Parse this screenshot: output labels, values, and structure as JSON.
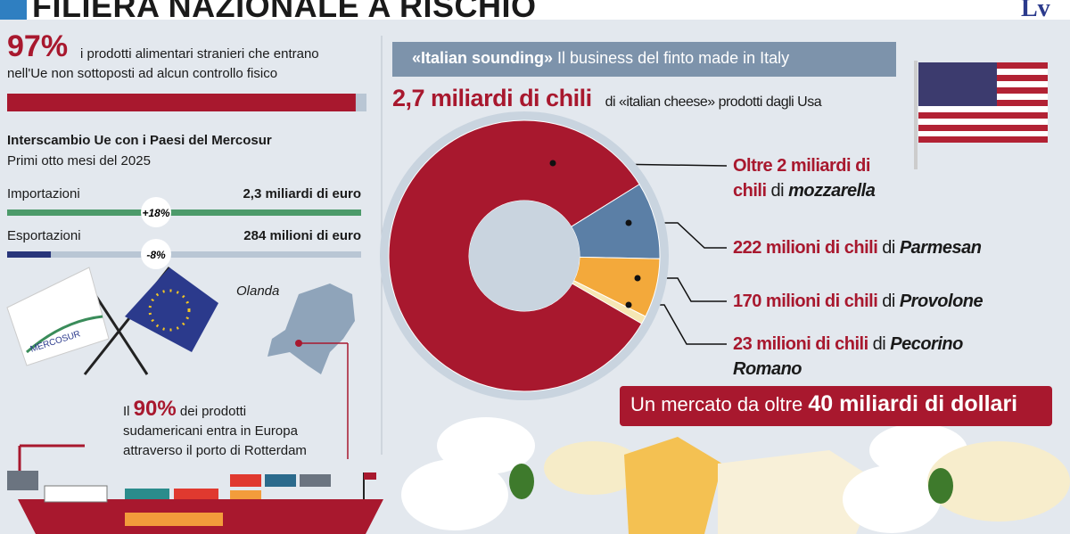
{
  "header": {
    "title": "FILIERA NAZIONALE A RISCHIO",
    "logo": "Lv"
  },
  "controls": {
    "label": "97%",
    "value": 97,
    "xlim": [
      0,
      100
    ],
    "text": [
      "i prodotti alimentari stranieri che entrano",
      "nell'Ue non sottoposti ad alcun controllo fisico"
    ]
  },
  "chart_data": [
    {
      "type": "bar",
      "title": "Interscambio Ue con i Paesi del Mercosur",
      "subtitle": "Primi otto mesi del 2025",
      "categories": [
        "Importazioni",
        "Esportazioni"
      ],
      "values": [
        2300,
        284
      ],
      "value_labels": [
        "2,3 miliardi di euro",
        "284 milioni di euro"
      ],
      "changes": [
        "+18%",
        "-8%"
      ],
      "colors": [
        "#4c9a6a",
        "#27357a"
      ],
      "xlim": [
        0,
        2300
      ]
    },
    {
      "type": "pie",
      "title": "«Italian sounding»",
      "subtitle": "Il business del finto made in Italy",
      "headline": "2,7 miliardi di chili",
      "headline_rest": "di «italian cheese» prodotti dagli Usa",
      "categories": [
        "mozzarella",
        "Parmesan",
        "Provolone",
        "Pecorino Romano"
      ],
      "values": [
        2000,
        222,
        170,
        23
      ],
      "value_labels": [
        "Oltre 2 miliardi di chili",
        "222 milioni di chili",
        "170 milioni di chili",
        "23 milioni di chili"
      ],
      "joiner": "di",
      "colors": [
        "#a8182e",
        "#5b7fa6",
        "#f3a93b",
        "#f6e7b4"
      ],
      "footer_text": "Un mercato da oltre",
      "footer_highlight": "40 miliardi di dollari"
    }
  ],
  "map": {
    "label": "Olanda",
    "before": "Il",
    "share": "90%",
    "after": [
      "dei prodotti",
      "sudamericani entra in Europa",
      "attraverso il porto di Rotterdam"
    ]
  },
  "flags": {
    "mercosur": "MERCOSUR"
  }
}
